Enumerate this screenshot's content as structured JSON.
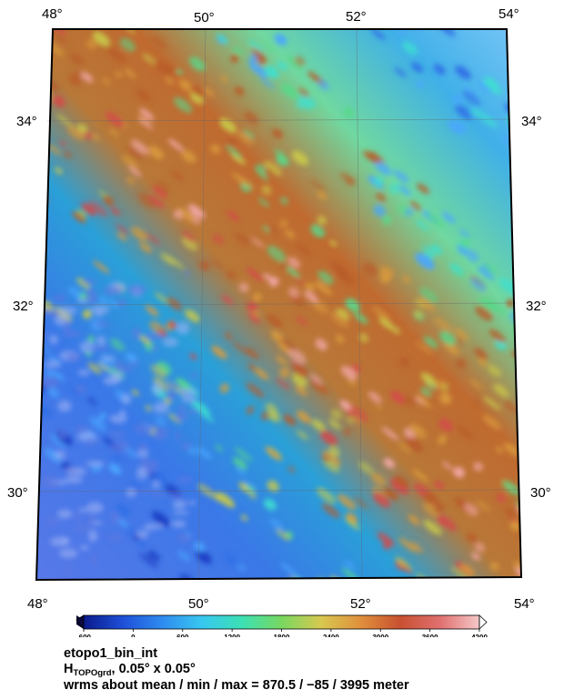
{
  "map": {
    "dataset_label": "etopo1_bin_int",
    "lon_labels": [
      "48",
      "50",
      "52",
      "54"
    ],
    "lat_labels": [
      "30",
      "32",
      "34"
    ],
    "degree_symbol": "°",
    "palette": [
      "#0b1560",
      "#1a3fc4",
      "#2f6fe6",
      "#4aa6ff",
      "#3ee0d0",
      "#58d88a",
      "#c8c84a",
      "#d89a3c",
      "#b85c2a",
      "#d44a4a",
      "#f2a8a8",
      "#ffffff"
    ],
    "colorbar": {
      "ticks": [
        "-600",
        "0",
        "600",
        "1200",
        "1800",
        "2400",
        "3000",
        "3600",
        "4200"
      ],
      "colors": [
        "#0a1a8c",
        "#1e50d8",
        "#2f8cf0",
        "#38c8f0",
        "#3ce0b4",
        "#78d860",
        "#d8c850",
        "#e0903c",
        "#c85030",
        "#e07070",
        "#f6c8c8"
      ]
    }
  },
  "caption": {
    "line1": "etopo1_bin_int",
    "line2_h": "H",
    "line2_sub": "TOPOgrd",
    "line2_rest": ", 0.05° x 0.05°",
    "line3": "wrms about mean / min / max = 870.5 / −85 / 3995 meter"
  }
}
